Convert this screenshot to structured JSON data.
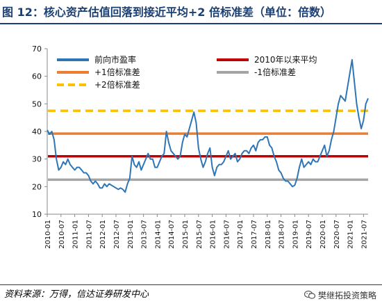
{
  "figure": {
    "title": "图 12：核心资产估值回落到接近平均+2 倍标准差（单位：倍数）",
    "source": "资料来源：万得，信达证券研发中心",
    "watermark": "樊继拓投资策略",
    "watermark_icon": "wechat-icon"
  },
  "chart_data": {
    "type": "line",
    "title": "",
    "xlabel": "",
    "ylabel": "",
    "ylim": [
      10,
      70
    ],
    "yticks": [
      10,
      20,
      30,
      40,
      50,
      60,
      70
    ],
    "xlim": [
      "2010-01",
      "2021-09"
    ],
    "xticks": [
      "2010-01",
      "2010-07",
      "2011-01",
      "2011-07",
      "2012-01",
      "2012-07",
      "2013-01",
      "2013-07",
      "2014-01",
      "2014-07",
      "2015-01",
      "2015-07",
      "2016-01",
      "2016-07",
      "2017-01",
      "2017-07",
      "2018-01",
      "2018-07",
      "2019-01",
      "2019-07",
      "2020-01",
      "2020-07",
      "2021-01",
      "2021-07"
    ],
    "grid": false,
    "legend_position": "top",
    "series": [
      {
        "name": "前向市盈率",
        "color": "#2e75b6",
        "style": "solid",
        "points": [
          [
            "2010-01",
            40.5
          ],
          [
            "2010-02",
            39
          ],
          [
            "2010-03",
            40
          ],
          [
            "2010-04",
            37
          ],
          [
            "2010-05",
            30
          ],
          [
            "2010-06",
            26
          ],
          [
            "2010-07",
            27
          ],
          [
            "2010-08",
            29
          ],
          [
            "2010-09",
            28
          ],
          [
            "2010-10",
            30
          ],
          [
            "2010-11",
            28
          ],
          [
            "2010-12",
            27
          ],
          [
            "2011-01",
            26
          ],
          [
            "2011-02",
            27
          ],
          [
            "2011-03",
            27
          ],
          [
            "2011-04",
            26
          ],
          [
            "2011-05",
            25
          ],
          [
            "2011-06",
            25
          ],
          [
            "2011-07",
            24
          ],
          [
            "2011-08",
            22
          ],
          [
            "2011-09",
            21
          ],
          [
            "2011-10",
            22
          ],
          [
            "2011-11",
            21
          ],
          [
            "2011-12",
            19.5
          ],
          [
            "2012-01",
            19.5
          ],
          [
            "2012-02",
            21
          ],
          [
            "2012-03",
            20
          ],
          [
            "2012-04",
            21
          ],
          [
            "2012-05",
            20.5
          ],
          [
            "2012-06",
            20
          ],
          [
            "2012-07",
            19.5
          ],
          [
            "2012-08",
            19
          ],
          [
            "2012-09",
            19.5
          ],
          [
            "2012-10",
            19
          ],
          [
            "2012-11",
            18
          ],
          [
            "2012-12",
            21
          ],
          [
            "2013-01",
            23
          ],
          [
            "2013-02",
            31
          ],
          [
            "2013-03",
            28
          ],
          [
            "2013-04",
            27
          ],
          [
            "2013-05",
            29
          ],
          [
            "2013-06",
            26
          ],
          [
            "2013-07",
            28
          ],
          [
            "2013-08",
            30
          ],
          [
            "2013-09",
            32
          ],
          [
            "2013-10",
            30
          ],
          [
            "2013-11",
            30
          ],
          [
            "2013-12",
            27
          ],
          [
            "2014-01",
            27
          ],
          [
            "2014-02",
            29
          ],
          [
            "2014-03",
            31
          ],
          [
            "2014-04",
            32
          ],
          [
            "2014-05",
            40
          ],
          [
            "2014-06",
            36
          ],
          [
            "2014-07",
            33
          ],
          [
            "2014-08",
            32
          ],
          [
            "2014-09",
            31
          ],
          [
            "2014-10",
            30
          ],
          [
            "2014-11",
            31
          ],
          [
            "2014-12",
            36
          ],
          [
            "2015-01",
            39
          ],
          [
            "2015-02",
            38
          ],
          [
            "2015-03",
            41
          ],
          [
            "2015-04",
            44
          ],
          [
            "2015-05",
            47
          ],
          [
            "2015-06",
            43
          ],
          [
            "2015-07",
            34
          ],
          [
            "2015-08",
            30
          ],
          [
            "2015-09",
            27
          ],
          [
            "2015-10",
            29
          ],
          [
            "2015-11",
            32
          ],
          [
            "2015-12",
            34
          ],
          [
            "2016-01",
            27
          ],
          [
            "2016-02",
            24
          ],
          [
            "2016-03",
            27
          ],
          [
            "2016-04",
            28
          ],
          [
            "2016-05",
            28
          ],
          [
            "2016-06",
            29
          ],
          [
            "2016-07",
            31
          ],
          [
            "2016-08",
            33
          ],
          [
            "2016-09",
            30
          ],
          [
            "2016-10",
            31
          ],
          [
            "2016-11",
            32
          ],
          [
            "2016-12",
            29
          ],
          [
            "2017-01",
            30
          ],
          [
            "2017-02",
            32
          ],
          [
            "2017-03",
            33
          ],
          [
            "2017-04",
            33
          ],
          [
            "2017-05",
            32
          ],
          [
            "2017-06",
            34
          ],
          [
            "2017-07",
            35
          ],
          [
            "2017-08",
            33
          ],
          [
            "2017-09",
            36
          ],
          [
            "2017-10",
            37
          ],
          [
            "2017-11",
            37
          ],
          [
            "2017-12",
            38
          ],
          [
            "2018-01",
            38
          ],
          [
            "2018-02",
            35
          ],
          [
            "2018-03",
            34
          ],
          [
            "2018-04",
            31
          ],
          [
            "2018-05",
            29
          ],
          [
            "2018-06",
            26
          ],
          [
            "2018-07",
            25
          ],
          [
            "2018-08",
            23
          ],
          [
            "2018-09",
            22
          ],
          [
            "2018-10",
            22
          ],
          [
            "2018-11",
            21
          ],
          [
            "2018-12",
            20
          ],
          [
            "2019-01",
            20.5
          ],
          [
            "2019-02",
            23
          ],
          [
            "2019-03",
            27
          ],
          [
            "2019-04",
            30
          ],
          [
            "2019-05",
            27
          ],
          [
            "2019-06",
            28
          ],
          [
            "2019-07",
            29
          ],
          [
            "2019-08",
            28
          ],
          [
            "2019-09",
            30
          ],
          [
            "2019-10",
            29
          ],
          [
            "2019-11",
            29
          ],
          [
            "2019-12",
            31
          ],
          [
            "2020-01",
            33
          ],
          [
            "2020-02",
            35
          ],
          [
            "2020-03",
            31
          ],
          [
            "2020-04",
            33
          ],
          [
            "2020-05",
            37
          ],
          [
            "2020-06",
            40
          ],
          [
            "2020-07",
            45
          ],
          [
            "2020-08",
            50
          ],
          [
            "2020-09",
            53
          ],
          [
            "2020-10",
            52
          ],
          [
            "2020-11",
            51
          ],
          [
            "2020-12",
            56
          ],
          [
            "2021-01",
            61
          ],
          [
            "2021-02",
            66
          ],
          [
            "2021-03",
            58
          ],
          [
            "2021-04",
            50
          ],
          [
            "2021-05",
            45
          ],
          [
            "2021-06",
            41
          ],
          [
            "2021-07",
            44
          ],
          [
            "2021-08",
            50
          ],
          [
            "2021-09",
            52
          ]
        ]
      },
      {
        "name": "2010年以来平均",
        "color": "#c00000",
        "style": "solid",
        "value": 31
      },
      {
        "name": "+1倍标准差",
        "color": "#ed7d31",
        "style": "solid",
        "value": 39.2
      },
      {
        "name": "-1倍标准差",
        "color": "#a5a5a5",
        "style": "solid",
        "value": 22.5
      },
      {
        "name": "+2倍标准差",
        "color": "#ffc000",
        "style": "dashed",
        "value": 47.5
      }
    ]
  }
}
